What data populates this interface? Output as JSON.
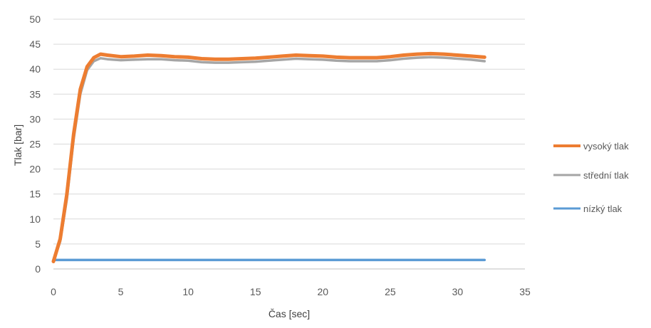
{
  "chart_data": {
    "type": "line",
    "xlabel": "Čas [sec]",
    "ylabel": "Tlak [bar]",
    "xlim": [
      0,
      35
    ],
    "ylim": [
      0,
      50
    ],
    "x_ticks": [
      "0",
      "5",
      "10",
      "15",
      "20",
      "25",
      "30",
      "35"
    ],
    "y_ticks": [
      "0",
      "5",
      "10",
      "15",
      "20",
      "25",
      "30",
      "35",
      "40",
      "45",
      "50"
    ],
    "grid": "horizontal",
    "legend_position": "right",
    "series": [
      {
        "name": "vysoký tlak",
        "color": "#ED7D31",
        "points": [
          [
            0,
            1.5
          ],
          [
            0.5,
            6
          ],
          [
            1,
            15
          ],
          [
            1.5,
            27
          ],
          [
            2,
            36
          ],
          [
            2.5,
            40.5
          ],
          [
            3,
            42.3
          ],
          [
            3.5,
            43
          ],
          [
            4,
            42.8
          ],
          [
            5,
            42.5
          ],
          [
            6,
            42.6
          ],
          [
            7,
            42.8
          ],
          [
            8,
            42.7
          ],
          [
            9,
            42.5
          ],
          [
            10,
            42.4
          ],
          [
            11,
            42.1
          ],
          [
            12,
            42
          ],
          [
            13,
            42
          ],
          [
            14,
            42.1
          ],
          [
            15,
            42.2
          ],
          [
            16,
            42.4
          ],
          [
            17,
            42.6
          ],
          [
            18,
            42.8
          ],
          [
            19,
            42.7
          ],
          [
            20,
            42.6
          ],
          [
            21,
            42.4
          ],
          [
            22,
            42.3
          ],
          [
            23,
            42.3
          ],
          [
            24,
            42.3
          ],
          [
            25,
            42.5
          ],
          [
            26,
            42.8
          ],
          [
            27,
            43
          ],
          [
            28,
            43.1
          ],
          [
            29,
            43
          ],
          [
            30,
            42.8
          ],
          [
            31,
            42.6
          ],
          [
            32,
            42.4
          ]
        ]
      },
      {
        "name": "střední tlak",
        "color": "#A5A5A5",
        "points": [
          [
            0,
            1.5
          ],
          [
            0.5,
            5.5
          ],
          [
            1,
            14
          ],
          [
            1.5,
            26
          ],
          [
            2,
            35
          ],
          [
            2.5,
            39.8
          ],
          [
            3,
            41.6
          ],
          [
            3.5,
            42.2
          ],
          [
            4,
            42
          ],
          [
            5,
            41.8
          ],
          [
            6,
            41.9
          ],
          [
            7,
            42
          ],
          [
            8,
            42
          ],
          [
            9,
            41.8
          ],
          [
            10,
            41.7
          ],
          [
            11,
            41.4
          ],
          [
            12,
            41.3
          ],
          [
            13,
            41.3
          ],
          [
            14,
            41.4
          ],
          [
            15,
            41.5
          ],
          [
            16,
            41.7
          ],
          [
            17,
            41.9
          ],
          [
            18,
            42.1
          ],
          [
            19,
            42
          ],
          [
            20,
            41.9
          ],
          [
            21,
            41.7
          ],
          [
            22,
            41.6
          ],
          [
            23,
            41.6
          ],
          [
            24,
            41.6
          ],
          [
            25,
            41.8
          ],
          [
            26,
            42.1
          ],
          [
            27,
            42.3
          ],
          [
            28,
            42.4
          ],
          [
            29,
            42.3
          ],
          [
            30,
            42.1
          ],
          [
            31,
            41.9
          ],
          [
            32,
            41.6
          ]
        ]
      },
      {
        "name": "nízký tlak",
        "color": "#5B9BD5",
        "points": [
          [
            0,
            1.8
          ],
          [
            32,
            1.8
          ]
        ]
      }
    ]
  }
}
